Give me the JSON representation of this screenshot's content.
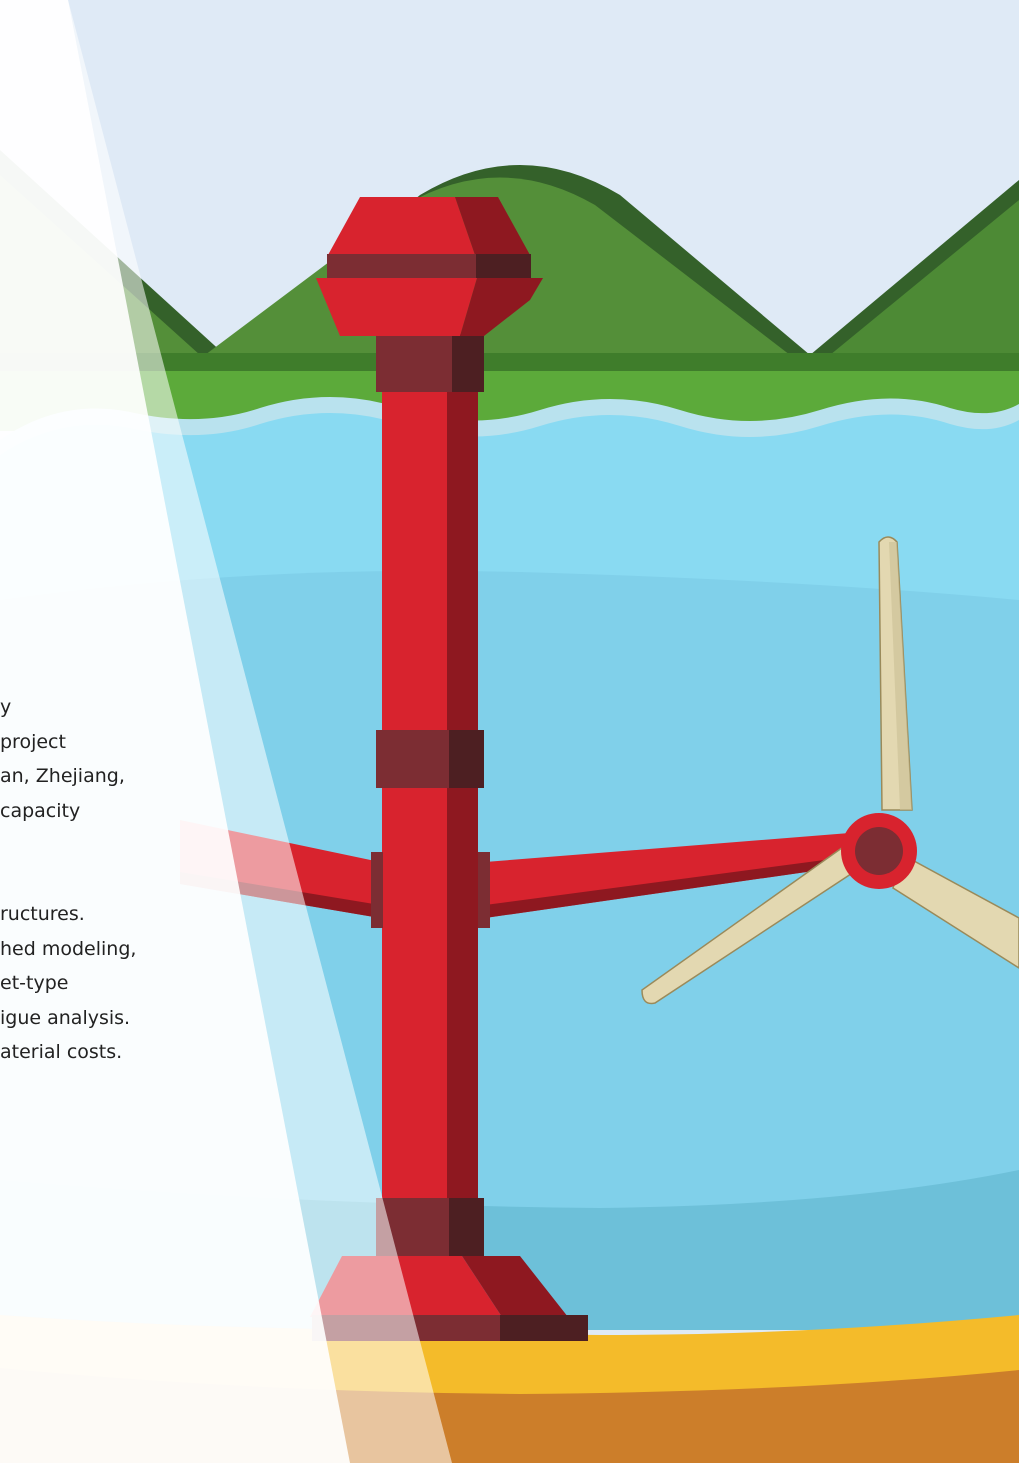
{
  "text_fragments": {
    "paragraph_1": [
      "y",
      "project",
      "an, Zhejiang,",
      "capacity"
    ],
    "paragraph_2": [
      "ructures.",
      "hed modeling,",
      "et-type",
      "igue analysis.",
      "aterial costs."
    ]
  },
  "colors": {
    "sky": "#dfeaf6",
    "hill_light": "#548f39",
    "hill_dark": "#34612a",
    "grass": "#5caa3a",
    "water": "#89daf2",
    "water_deep": "#6dc0d9",
    "sand": "#f4bb2a",
    "soil": "#cc7e2a",
    "tower_red": "#d8232e",
    "tower_dark": "#8e1820",
    "collar": "#7c2d33",
    "blade": "#e3d8b1"
  },
  "icons": [
    "tidal-turbine-illustration",
    "turbine-rotor-icon"
  ]
}
